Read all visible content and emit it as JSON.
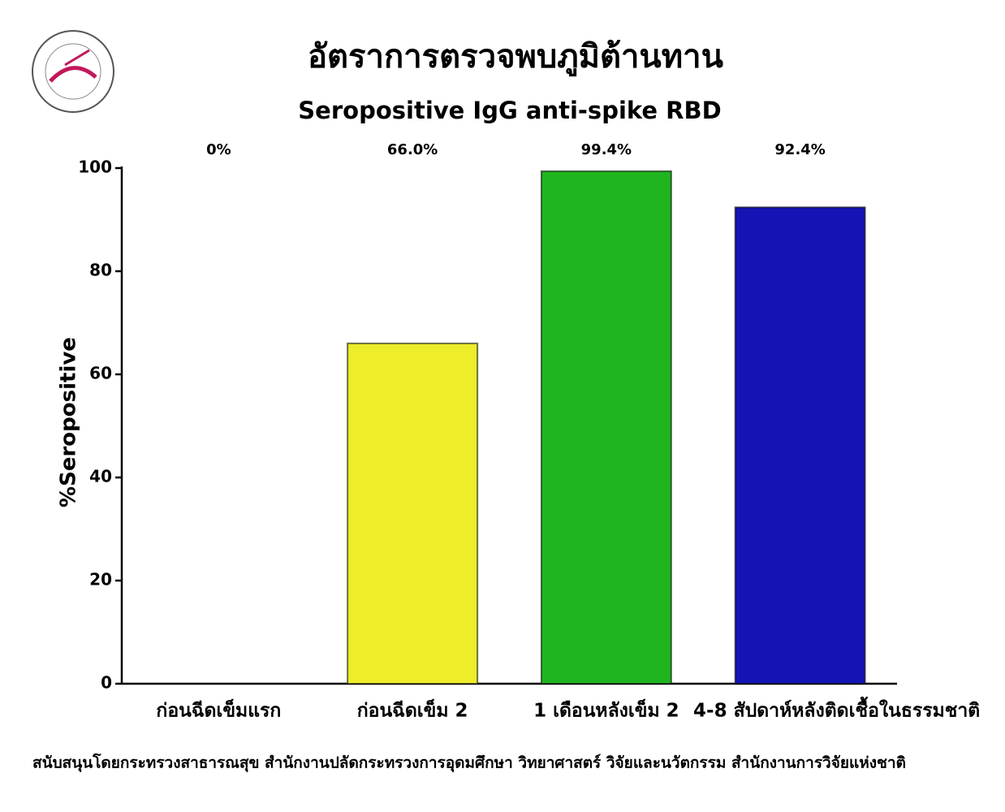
{
  "chart_data": {
    "type": "bar",
    "title": "อัตราการตรวจพบภูมิต้านทาน",
    "subtitle": "Seropositive IgG anti-spike RBD",
    "y_label": "%Seropositive",
    "categories": [
      "ก่อนฉีดเข็มแรก",
      "ก่อนฉีดเข็ม 2",
      "1 เดือนหลังเข็ม 2",
      "4-8 สัปดาห์หลังติดเชื้อในธรรมชาติ"
    ],
    "values": [
      0,
      66.0,
      99.4,
      92.4
    ],
    "value_labels": [
      "0%",
      "66.0%",
      "99.4%",
      "92.4%"
    ],
    "colors": [
      "#ffffff",
      "#eded2a",
      "#1fb51f",
      "#1414b4"
    ],
    "ylim": [
      0,
      100
    ],
    "yticks": [
      0,
      20,
      40,
      60,
      80,
      100
    ]
  },
  "footer": "สนับสนุนโดยกระทรวงสาธารณสุข  สำนักงานปลัดกระทรวงการอุดมศึกษา  วิทยาศาสตร์ วิจัยและนวัตกรรม  สำนักงานการวิจัยแห่งชาติ"
}
